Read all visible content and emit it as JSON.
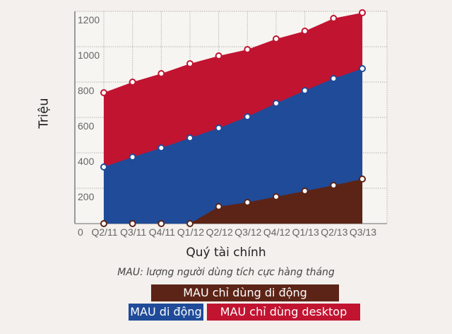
{
  "chart_data": {
    "type": "area",
    "stacked": false,
    "title": "",
    "xlabel": "Quý tài chính",
    "ylabel": "Triệu",
    "note": "MAU: lượng người dùng tích cực hàng tháng",
    "categories": [
      "Q2/11",
      "Q3/11",
      "Q4/11",
      "Q1/12",
      "Q2/12",
      "Q3/12",
      "Q4/12",
      "Q1/13",
      "Q2/13",
      "Q3/13"
    ],
    "yticks": [
      0,
      200,
      400,
      600,
      800,
      1000,
      1200
    ],
    "ylim": [
      0,
      1200
    ],
    "grid": true,
    "series": [
      {
        "name": "MAU chỉ dùng desktop",
        "color": "#c11431",
        "values": [
          740,
          800,
          848,
          904,
          948,
          984,
          1044,
          1088,
          1160,
          1192
        ]
      },
      {
        "name": "MAU di động",
        "color": "#1f4b99",
        "values": [
          320,
          376,
          428,
          484,
          540,
          604,
          680,
          752,
          820,
          876
        ]
      },
      {
        "name": "MAU chỉ dùng di động",
        "color": "#5c2416",
        "values": [
          0,
          0,
          0,
          0,
          96,
          120,
          152,
          184,
          216,
          252
        ]
      }
    ],
    "legend_position": "bottom"
  },
  "labels": {
    "ytitle": "Triệu",
    "xtitle": "Quý tài chính",
    "note": "MAU: lượng người dùng tích cực hàng tháng",
    "legend_mobile_only": "MAU chỉ dùng di động",
    "legend_mobile": "MAU di động",
    "legend_desktop_only": "MAU chỉ dùng desktop"
  }
}
